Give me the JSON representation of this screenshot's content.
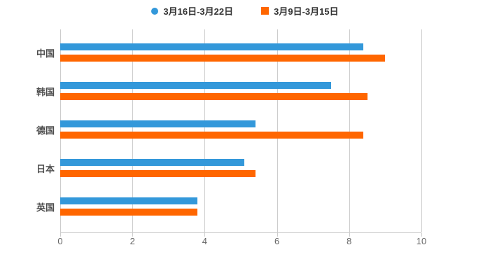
{
  "chart_data": {
    "type": "bar",
    "orientation": "horizontal",
    "title": "",
    "xlabel": "",
    "ylabel": "",
    "categories": [
      "中国",
      "韩国",
      "德国",
      "日本",
      "英国"
    ],
    "series": [
      {
        "name": "3月16日-3月22日",
        "color": "#3398da",
        "marker": "circle",
        "values": [
          8.4,
          7.5,
          5.4,
          5.1,
          3.8
        ]
      },
      {
        "name": "3月9日-3月15日",
        "color": "#ff6600",
        "marker": "square",
        "values": [
          9.0,
          8.5,
          8.4,
          5.4,
          3.8
        ]
      }
    ],
    "xlim": [
      0,
      10
    ],
    "x_ticks": [
      "0",
      "2",
      "4",
      "6",
      "8",
      "10"
    ],
    "grid": true,
    "legend_position": "top-center",
    "colors": {
      "background": "#ffffff",
      "grid": "#cccccc",
      "axis": "#cccccc",
      "tick_label": "#666666",
      "category_label": "#4d4d4d",
      "legend_text": "#333333"
    }
  }
}
